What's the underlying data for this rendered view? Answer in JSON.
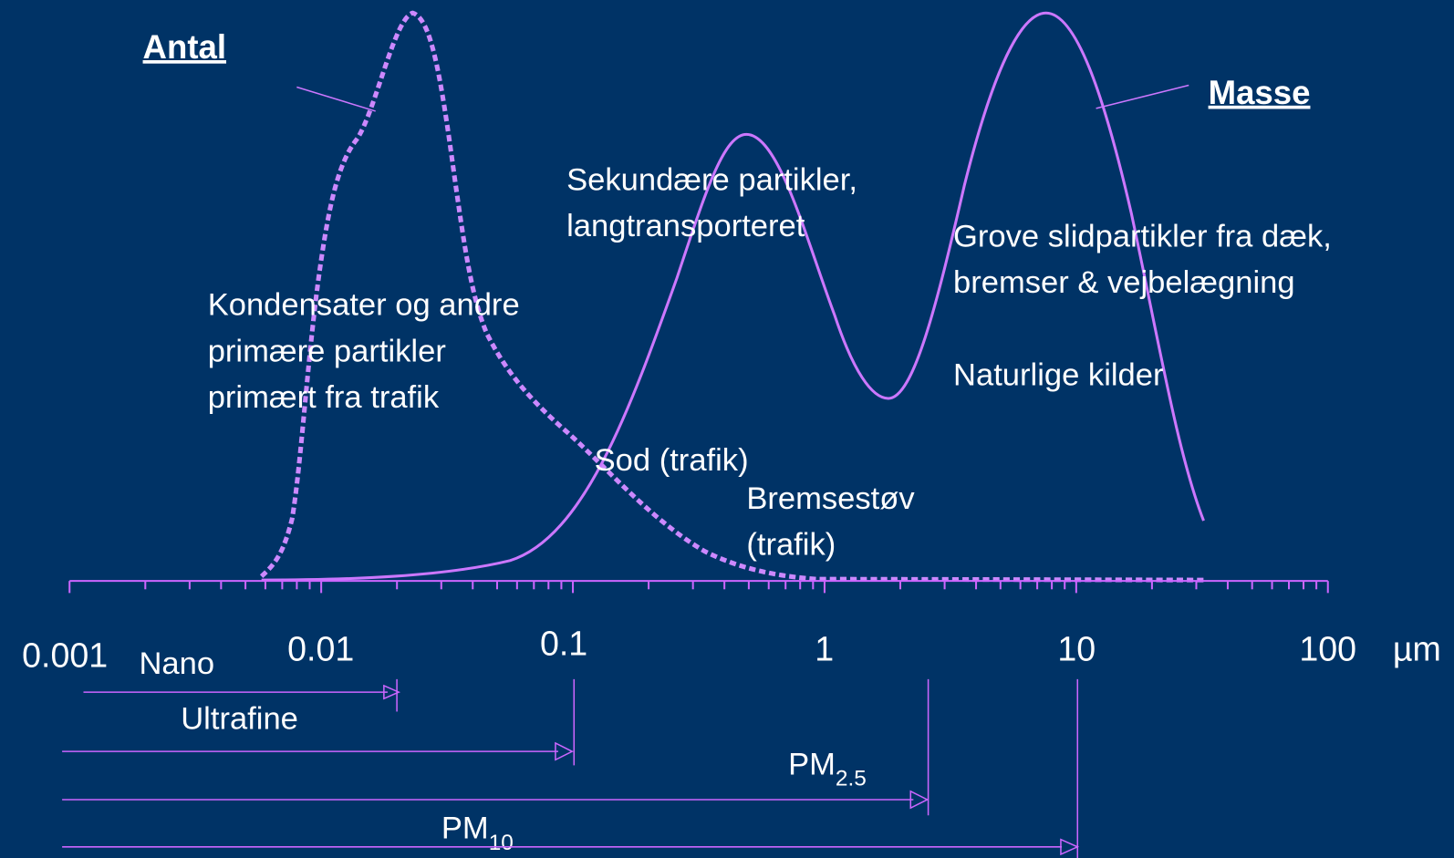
{
  "header": {
    "number_label": "Antal",
    "mass_label": "Masse"
  },
  "annotations": [
    {
      "lines": [
        "Sekundære partikler,",
        "langtransporteret"
      ]
    },
    {
      "lines": [
        "Grove slidpartikler fra dæk,",
        "bremser & vejbelægning"
      ]
    },
    {
      "lines": [
        "Naturlige kilder"
      ]
    },
    {
      "lines": [
        "Kondensater og andre",
        "primære partikler",
        "primært fra trafik"
      ]
    },
    {
      "lines": [
        "Sod (trafik)"
      ]
    },
    {
      "lines": [
        "Bremsestøv",
        "(trafik)"
      ]
    }
  ],
  "axis": {
    "ticks": [
      "0.001",
      "0.01",
      "0.1",
      "1",
      "10",
      "100"
    ],
    "unit": "µm"
  },
  "ranges": [
    {
      "label": "Nano"
    },
    {
      "label": "Ultrafine"
    },
    {
      "label": "PM",
      "sub": "2.5"
    },
    {
      "label": "PM",
      "sub": "10"
    }
  ]
}
